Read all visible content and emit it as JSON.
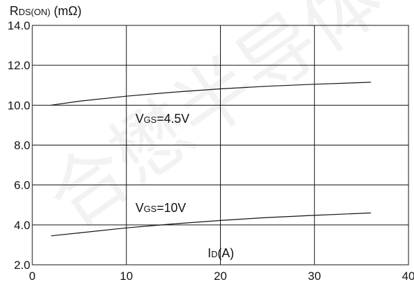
{
  "chart_data": {
    "type": "line",
    "ylabel": {
      "main": "R",
      "sub": "DS(ON)",
      "unit": " (mΩ)"
    },
    "xlabel": {
      "main": "I",
      "sub": "D",
      "unit": "(A)"
    },
    "xlim": [
      0,
      40
    ],
    "ylim": [
      2.0,
      14.0
    ],
    "x_ticks": [
      0,
      10,
      20,
      30,
      40
    ],
    "y_ticks": [
      "2.0",
      "4.0",
      "6.0",
      "8.0",
      "10.0",
      "12.0",
      "14.0"
    ],
    "grid": true,
    "series": [
      {
        "name": {
          "main": "V",
          "sub": "GS",
          "value": "=4.5V"
        },
        "x": [
          2,
          5,
          10,
          15,
          20,
          25,
          30,
          36
        ],
        "y": [
          10.0,
          10.2,
          10.45,
          10.65,
          10.82,
          10.95,
          11.05,
          11.15
        ]
      },
      {
        "name": {
          "main": "V",
          "sub": "GS",
          "value": "=10V"
        },
        "x": [
          2,
          5,
          10,
          15,
          20,
          25,
          30,
          36
        ],
        "y": [
          3.45,
          3.6,
          3.85,
          4.05,
          4.22,
          4.37,
          4.48,
          4.6
        ]
      }
    ]
  },
  "watermark": "合懋半导体"
}
